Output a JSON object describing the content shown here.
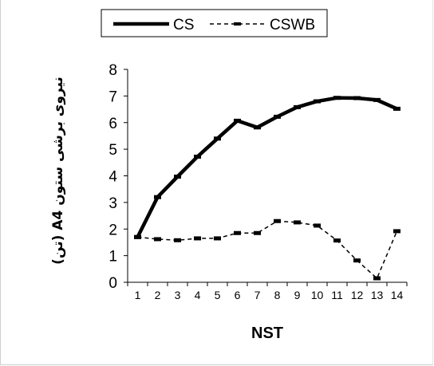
{
  "chart_data": {
    "type": "line",
    "xlabel": "NST",
    "ylabel": "نیروی برشی ستون A4 (تن)",
    "x": [
      1,
      2,
      3,
      4,
      5,
      6,
      7,
      8,
      9,
      10,
      11,
      12,
      13,
      14
    ],
    "ylim": [
      0,
      8
    ],
    "yticks": [
      0,
      1,
      2,
      3,
      4,
      5,
      6,
      7,
      8
    ],
    "grid": false,
    "legend_position": "top",
    "series": [
      {
        "name": "CS",
        "style": "solid-thick",
        "color": "#000000",
        "values": [
          1.7,
          3.2,
          3.97,
          4.72,
          5.4,
          6.07,
          5.82,
          6.22,
          6.58,
          6.8,
          6.93,
          6.92,
          6.85,
          6.52
        ]
      },
      {
        "name": "CSWB",
        "style": "dashed-with-dash-markers",
        "color": "#000000",
        "values": [
          1.7,
          1.62,
          1.58,
          1.65,
          1.65,
          1.85,
          1.85,
          2.3,
          2.25,
          2.13,
          1.57,
          0.82,
          0.15,
          1.92
        ]
      }
    ]
  }
}
